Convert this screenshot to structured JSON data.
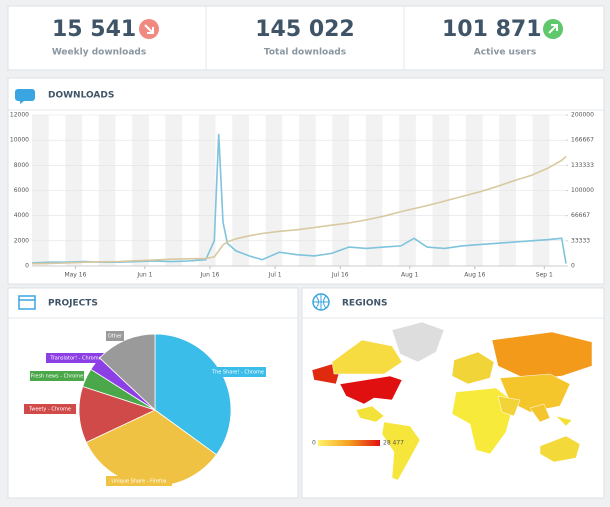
{
  "stats": [
    {
      "value": "15 541",
      "label": "Weekly downloads"
    },
    {
      "value": "145 022",
      "label": "Total downloads"
    },
    {
      "value": "101 871",
      "label": "Active users"
    }
  ],
  "chart_data": [
    {
      "type": "line",
      "title": "DOWNLOADS",
      "x": [
        5,
        9,
        13,
        17,
        21,
        25,
        29,
        33,
        37,
        41,
        45,
        47,
        48,
        49,
        50,
        52,
        55,
        58,
        62,
        66,
        70,
        74,
        78,
        82,
        86,
        90,
        93,
        96,
        100,
        104,
        108,
        112,
        116,
        120,
        124,
        127,
        128
      ],
      "xlim": [
        5,
        128
      ],
      "xticks": [
        {
          "value": 15,
          "label": "May 16"
        },
        {
          "value": 31,
          "label": "Jun 1"
        },
        {
          "value": 46,
          "label": "Jun 16"
        },
        {
          "value": 61,
          "label": "Jul 1"
        },
        {
          "value": 76,
          "label": "Jul 16"
        },
        {
          "value": 92,
          "label": "Aug 1"
        },
        {
          "value": 107,
          "label": "Aug 16"
        },
        {
          "value": 123,
          "label": "Sep 1"
        }
      ],
      "ylim": [
        0,
        12000
      ],
      "yticks": [
        0,
        2000,
        4000,
        6000,
        8000,
        10000,
        12000
      ],
      "y2lim": [
        0,
        200000
      ],
      "y2ticks": [
        0,
        33333,
        66667,
        100000,
        133333,
        166667,
        200000
      ],
      "grid": true,
      "series": [
        {
          "color": "#7fc3dc",
          "values": [
            250,
            300,
            300,
            350,
            300,
            300,
            350,
            400,
            350,
            400,
            500,
            2000,
            10500,
            3500,
            1800,
            1200,
            800,
            500,
            1100,
            900,
            800,
            1000,
            1500,
            1400,
            1500,
            1600,
            2200,
            1500,
            1400,
            1600,
            1700,
            1800,
            1900,
            2000,
            2100,
            2200,
            200
          ]
        },
        {
          "color": "#d9c9a0",
          "axis": "y2",
          "values": [
            3000,
            3500,
            4000,
            5000,
            5500,
            6000,
            7000,
            8000,
            9000,
            9500,
            10000,
            12000,
            20000,
            28000,
            32000,
            36000,
            40000,
            43000,
            46000,
            48000,
            51000,
            54000,
            57000,
            61000,
            66000,
            72000,
            76000,
            80000,
            86000,
            92000,
            98000,
            105000,
            113000,
            120000,
            130000,
            140000,
            145000
          ]
        }
      ]
    },
    {
      "type": "pie",
      "title": "PROJECTS",
      "categories": [
        "The Share! - Chrome",
        "Unique Share - Firefox",
        "Tweety - Chrome",
        "Fresh news - Chrome",
        "Translator! - Chrome",
        "Other"
      ],
      "values": [
        35,
        33,
        12,
        4,
        3,
        13
      ],
      "colors": [
        "#3bbde9",
        "#f0c243",
        "#d04a4a",
        "#4aa84a",
        "#8d3fe6",
        "#9a9a9a"
      ]
    }
  ],
  "regions": {
    "title": "REGIONS",
    "scale_min": "0",
    "scale_max": "28 477"
  }
}
